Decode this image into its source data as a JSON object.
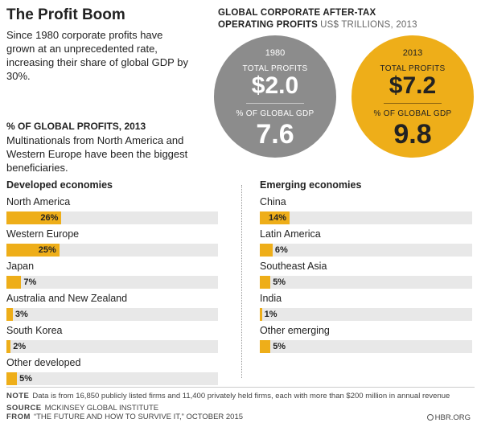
{
  "title": "The Profit Boom",
  "intro": "Since 1980 corporate profits have grown at an unprecedented rate, increasing their share of global GDP by 30%.",
  "right_header": {
    "line1": "GLOBAL CORPORATE AFTER-TAX",
    "line2": "OPERATING PROFITS",
    "unit": "US$ TRILLIONS, 2013"
  },
  "circles": {
    "y1980": {
      "year": "1980",
      "label1": "TOTAL PROFITS",
      "value1": "$2.0",
      "label2": "% OF GLOBAL GDP",
      "value2": "7.6",
      "color": "#8c8c8c"
    },
    "y2013": {
      "year": "2013",
      "label1": "TOTAL PROFITS",
      "value1": "$7.2",
      "label2": "% OF GLOBAL GDP",
      "value2": "9.8",
      "color": "#eeae19"
    }
  },
  "section": {
    "title": "% OF GLOBAL PROFITS, 2013",
    "description": "Multinationals from North America and Western Europe have been the biggest beneficiaries."
  },
  "chart_data": {
    "type": "bar",
    "title": "% OF GLOBAL PROFITS, 2013",
    "max": 100,
    "bar_color": "#eeae19",
    "track_color": "#e8e8e8",
    "groups": [
      {
        "name": "Developed economies",
        "categories": [
          "North America",
          "Western Europe",
          "Japan",
          "Australia and New Zealand",
          "South Korea",
          "Other developed"
        ],
        "values": [
          26,
          25,
          7,
          3,
          2,
          5
        ],
        "labels": [
          "26%",
          "25%",
          "7%",
          "3%",
          "2%",
          "5%"
        ]
      },
      {
        "name": "Emerging economies",
        "categories": [
          "China",
          "Latin America",
          "Southeast Asia",
          "India",
          "Other emerging"
        ],
        "values": [
          14,
          6,
          5,
          1,
          5
        ],
        "labels": [
          "14%",
          "6%",
          "5%",
          "1%",
          "5%"
        ]
      }
    ]
  },
  "footer": {
    "note_tag": "NOTE",
    "note": "Data is from 16,850 publicly listed firms and 11,400 privately held firms, each with more than $200 million in annual revenue",
    "source_tag": "SOURCE",
    "source": "MCKINSEY GLOBAL INSTITUTE",
    "from_tag": "FROM",
    "from": "“THE FUTURE AND HOW TO SURVIVE IT,” OCTOBER 2015",
    "credit": "HBR.ORG"
  }
}
